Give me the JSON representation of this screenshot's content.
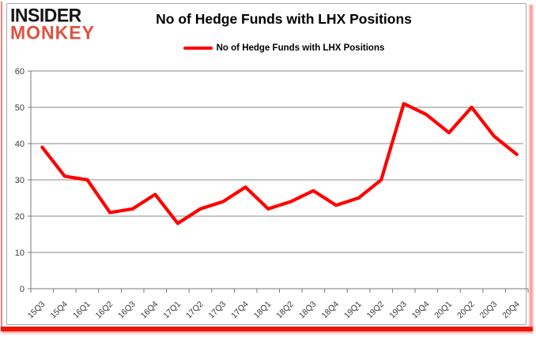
{
  "logo": {
    "line1": "INSIDER",
    "line2": "MONKEY"
  },
  "header": {
    "title": "No of Hedge Funds with LHX Positions"
  },
  "legend": {
    "label": "No of Hedge Funds with LHX Positions"
  },
  "colors": {
    "line": "#fe0000",
    "logo_red": "#dd5240",
    "frame_red": "#ee1407",
    "grid": "#8a8a8a",
    "axis": "#7a7a7a",
    "axis_text": "#3b3b3b"
  },
  "chart_data": {
    "type": "line",
    "title": "No of Hedge Funds with LHX Positions",
    "categories": [
      "15Q3",
      "15Q4",
      "16Q1",
      "16Q2",
      "16Q3",
      "16Q4",
      "17Q1",
      "17Q2",
      "17Q3",
      "17Q4",
      "18Q1",
      "18Q2",
      "18Q3",
      "18Q4",
      "19Q1",
      "19Q2",
      "19Q3",
      "19Q4",
      "20Q1",
      "20Q2",
      "20Q3",
      "20Q4"
    ],
    "series": [
      {
        "name": "No of Hedge Funds with LHX Positions",
        "color": "#fe0000",
        "values": [
          39,
          31,
          30,
          21,
          22,
          26,
          18,
          22,
          24,
          28,
          22,
          24,
          27,
          23,
          25,
          30,
          51,
          48,
          43,
          50,
          42,
          37
        ]
      }
    ],
    "xlabel": "",
    "ylabel": "",
    "ylim": [
      0,
      60
    ],
    "ytick_step": 10,
    "grid": true,
    "legend_position": "top"
  }
}
